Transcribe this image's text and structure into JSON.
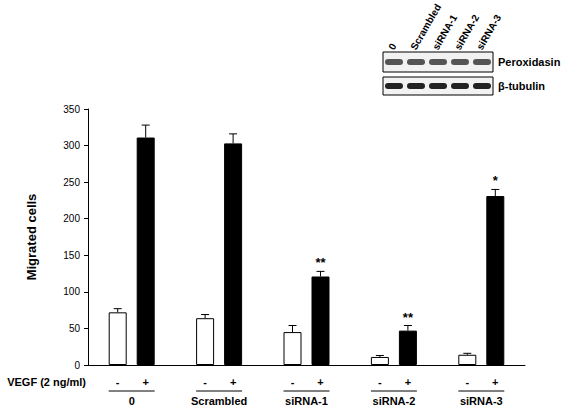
{
  "chart_data": {
    "type": "bar",
    "y_label": "Migrated cells",
    "annotation": "VEGF (2 ng/ml)",
    "categories": [
      "0",
      "Scrambled",
      "siRNA-1",
      "siRNA-2",
      "siRNA-3"
    ],
    "series": [
      {
        "name": "-",
        "color": "#ffffff",
        "values": [
          72,
          64,
          45,
          11,
          14
        ],
        "errors": [
          5,
          5,
          9,
          2,
          2
        ],
        "significance": [
          null,
          null,
          null,
          null,
          null
        ]
      },
      {
        "name": "+",
        "color": "#000000",
        "values": [
          311,
          303,
          121,
          47,
          231
        ],
        "errors": [
          17,
          13,
          7,
          7,
          9
        ],
        "significance": [
          null,
          null,
          "**",
          "**",
          "*"
        ]
      }
    ],
    "ylim": [
      0,
      350
    ],
    "yticks": [
      0,
      50,
      100,
      150,
      200,
      250,
      300,
      350
    ],
    "grid": false,
    "blot": {
      "lanes": [
        "0",
        "Scrambled",
        "siRNA-1",
        "siRNA-2",
        "siRNA-3"
      ],
      "rows": [
        "Peroxidasin",
        "β-tubulin"
      ]
    }
  }
}
